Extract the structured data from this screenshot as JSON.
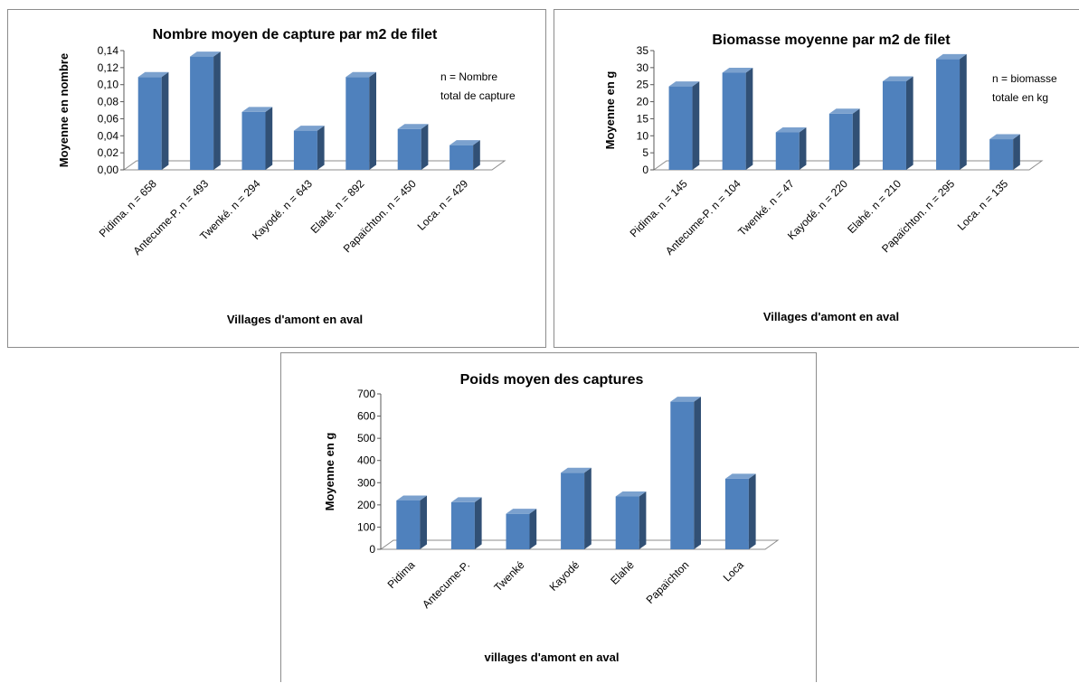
{
  "chart_data": [
    {
      "type": "bar",
      "title": "Nombre moyen de capture par m2 de filet",
      "xlabel": "Villages d'amont en aval",
      "ylabel": "Moyenne en nombre",
      "categories": [
        "Pidima. n = 658",
        "Antecume-P. n = 493",
        "Twenké. n = 294",
        "Kayodé. n = 643",
        "Elahé. n = 892",
        "Papaïchton. n = 450",
        "Loca. n = 429"
      ],
      "values": [
        0.109,
        0.133,
        0.068,
        0.046,
        0.109,
        0.048,
        0.029
      ],
      "ylim": [
        0,
        0.14
      ],
      "yticks": [
        "0,00",
        "0,02",
        "0,04",
        "0,06",
        "0,08",
        "0,10",
        "0,12",
        "0,14"
      ],
      "annotation": [
        "n = Nombre",
        "total de capture"
      ],
      "grid": false,
      "legend": "none",
      "bar_color": "#4f81bd"
    },
    {
      "type": "bar",
      "title": "Biomasse moyenne par m2 de filet",
      "xlabel": "Villages d'amont en aval",
      "ylabel": "Moyenne en g",
      "categories": [
        "Pidima. n = 145",
        "Antecume-P. n = 104",
        "Twenké. n = 47",
        "Kayodé. n = 220",
        "Elahé. n = 210",
        "Papaïchton. n = 295",
        "Loca. n = 135"
      ],
      "values": [
        24.5,
        28.5,
        11,
        16.5,
        26,
        32.5,
        9
      ],
      "ylim": [
        0,
        35
      ],
      "yticks": [
        "0",
        "5",
        "10",
        "15",
        "20",
        "25",
        "30",
        "35"
      ],
      "annotation": [
        "n = biomasse",
        "totale en kg"
      ],
      "grid": false,
      "legend": "none",
      "bar_color": "#4f81bd"
    },
    {
      "type": "bar",
      "title": "Poids moyen des captures",
      "xlabel": "villages d'amont en aval",
      "ylabel": "Moyenne en g",
      "categories": [
        "Pidima",
        "Antecume-P.",
        "Twenké",
        "Kayodé",
        "Elahé",
        "Papaïchton",
        "Loca"
      ],
      "values": [
        220,
        212,
        160,
        345,
        238,
        665,
        318
      ],
      "ylim": [
        0,
        700
      ],
      "yticks": [
        "0",
        "100",
        "200",
        "300",
        "400",
        "500",
        "600",
        "700"
      ],
      "annotation": [],
      "grid": false,
      "legend": "none",
      "bar_color": "#4f81bd"
    }
  ]
}
